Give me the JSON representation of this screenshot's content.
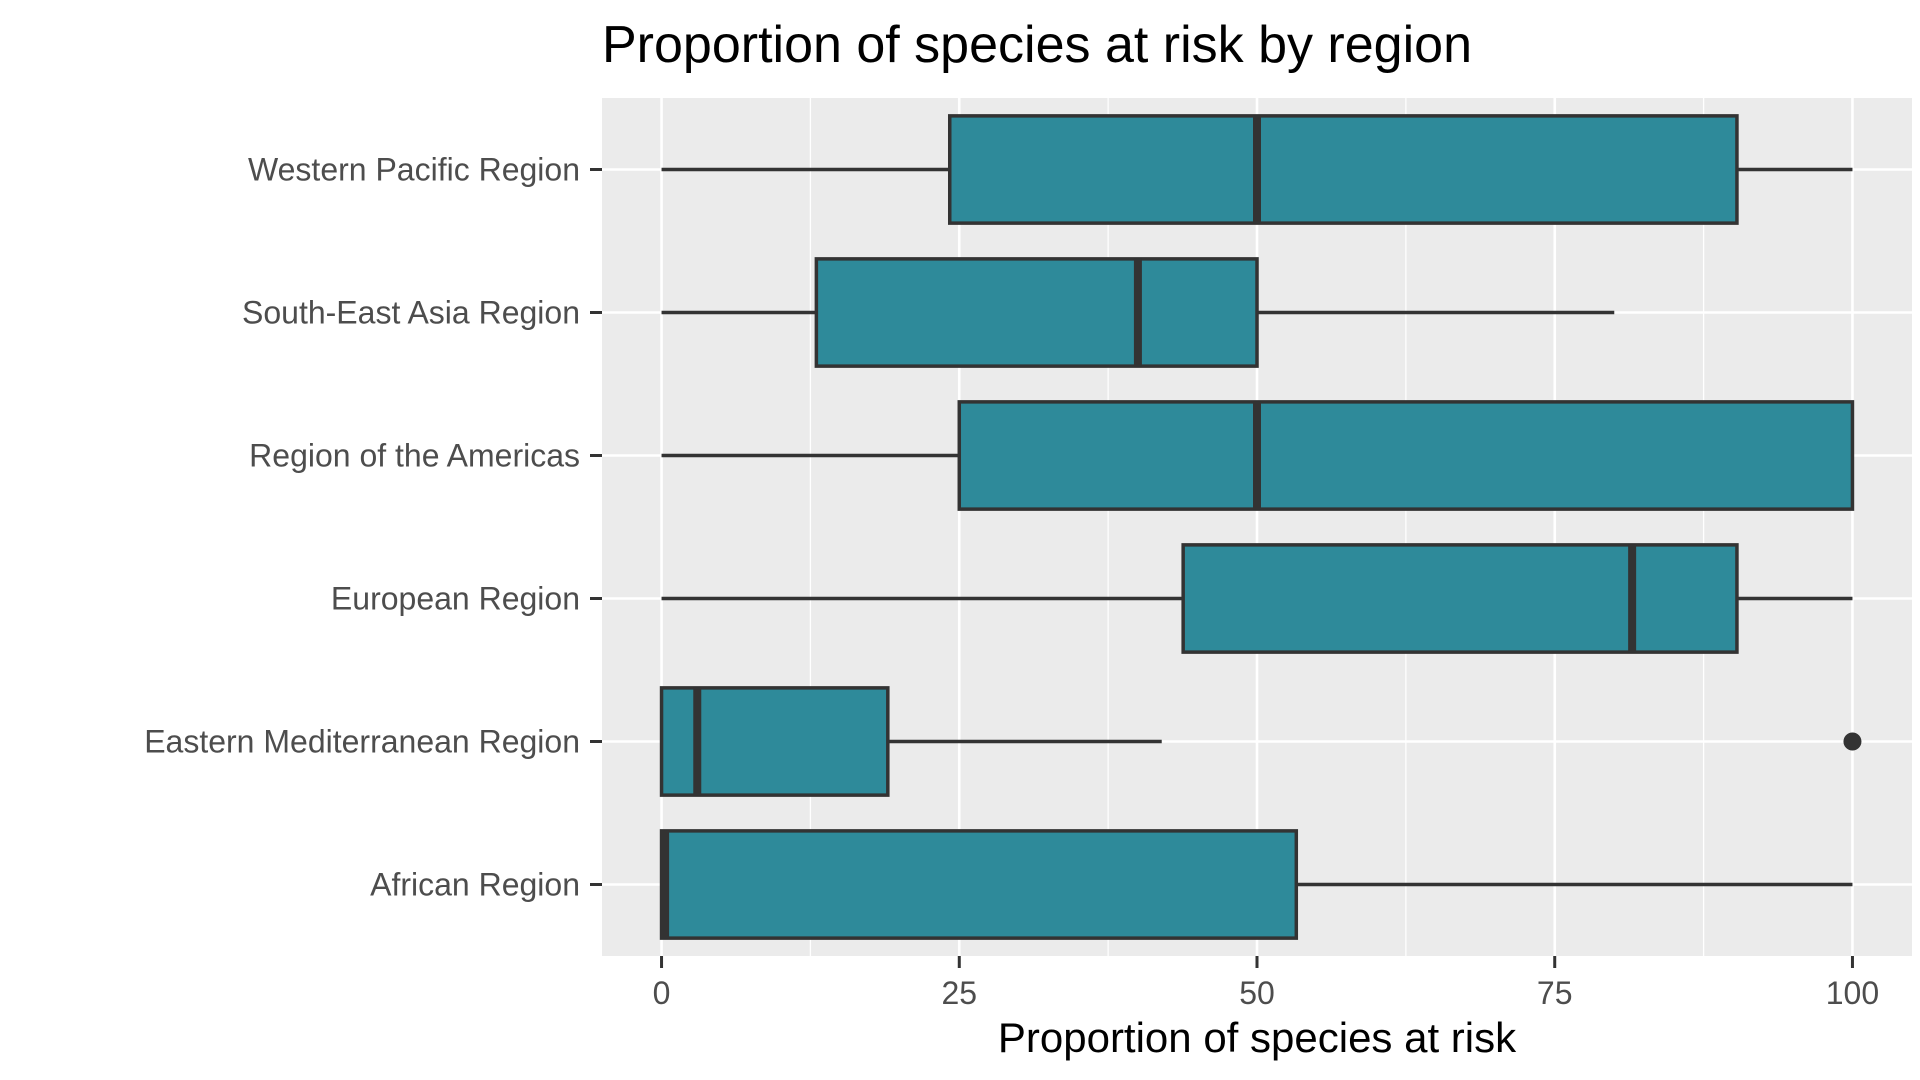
{
  "chart_data": {
    "type": "boxplot",
    "orientation": "horizontal",
    "title": "Proportion of species at risk by region",
    "xlabel": "Proportion of species at risk",
    "ylabel": "",
    "xlim": [
      -5,
      105
    ],
    "x_ticks": [
      0,
      25,
      50,
      75,
      100
    ],
    "x_tick_labels": [
      "0",
      "25",
      "50",
      "75",
      "100"
    ],
    "grid": true,
    "legend": "none",
    "categories": [
      "African Region",
      "Eastern Mediterranean Region",
      "European Region",
      "Region of the Americas",
      "South-East Asia Region",
      "Western Pacific Region"
    ],
    "series": [
      {
        "values": [
          {
            "min": 0,
            "q1": 0,
            "median": 0.3,
            "q3": 53.3,
            "max": 100,
            "outliers": []
          },
          {
            "min": 0,
            "q1": 0,
            "median": 3,
            "q3": 19,
            "max": 42,
            "outliers": [
              100
            ]
          },
          {
            "min": 0,
            "q1": 43.8,
            "median": 81.5,
            "q3": 90.3,
            "max": 100,
            "outliers": []
          },
          {
            "min": 0,
            "q1": 25,
            "median": 50,
            "q3": 100,
            "max": 100,
            "outliers": []
          },
          {
            "min": 0,
            "q1": 13,
            "median": 40,
            "q3": 50,
            "max": 80,
            "outliers": []
          },
          {
            "min": 0,
            "q1": 24.2,
            "median": 50,
            "q3": 90.3,
            "max": 100,
            "outliers": []
          }
        ]
      }
    ],
    "colors": {
      "box_fill": "#2e8a9a",
      "box_stroke": "#333333",
      "panel_background": "#ebebeb",
      "grid": "#ffffff"
    }
  }
}
